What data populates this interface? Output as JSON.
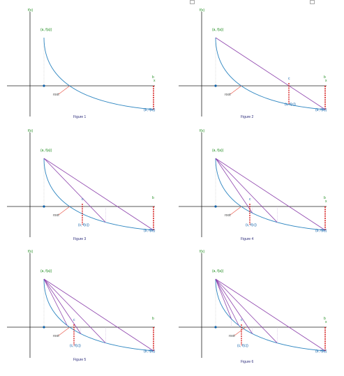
{
  "colors": {
    "axis": "#222222",
    "curve": "#2e86c1",
    "chord": "#8e44ad",
    "drop": "#d00000",
    "label": "#1e8b1e",
    "root": "#0a5fa8"
  },
  "panels": [
    {
      "caption": "Figure 1",
      "y_label": "f(x)",
      "x_label": "x",
      "a_label": "(a, f(a))",
      "b_label": "b",
      "bp_label": "(b, f(b))",
      "root_label": "root",
      "c_label": "",
      "cp_label": "",
      "chords": 0
    },
    {
      "caption": "Figure 2",
      "y_label": "f(x)",
      "x_label": "x",
      "a_label": "(a, f(a))",
      "b_label": "b",
      "bp_label": "(b, f(b))",
      "root_label": "root",
      "c_label": "c",
      "cp_label": "(c, f(c))",
      "chords": 1
    },
    {
      "caption": "Figure 3",
      "y_label": "f(x)",
      "x_label": "",
      "a_label": "(a, f(a))",
      "b_label": "b",
      "bp_label": "(b, f(b))",
      "root_label": "root",
      "c_label": "c",
      "cp_label": "(c, f(c))",
      "chords": 2
    },
    {
      "caption": "Figure 4",
      "y_label": "f(x)",
      "x_label": "x",
      "a_label": "(a, f(a))",
      "b_label": "b",
      "bp_label": "(b, f(b))",
      "root_label": "root",
      "c_label": "c",
      "cp_label": "(c, f(c))",
      "chords": 3
    },
    {
      "caption": "Figure 5",
      "y_label": "f(x)",
      "x_label": "",
      "a_label": "(a, f(a))",
      "b_label": "b",
      "bp_label": "(b, f(b))",
      "root_label": "root",
      "c_label": "c",
      "cp_label": "(c, f(c))",
      "chords": 4
    },
    {
      "caption": "Figure 6",
      "y_label": "f(x)",
      "x_label": "x",
      "a_label": "(a, f(a))",
      "b_label": "b",
      "bp_label": "(b, f(b))",
      "root_label": "root",
      "c_label": "c",
      "cp_label": "(c, f(c))",
      "chords": 5
    }
  ]
}
